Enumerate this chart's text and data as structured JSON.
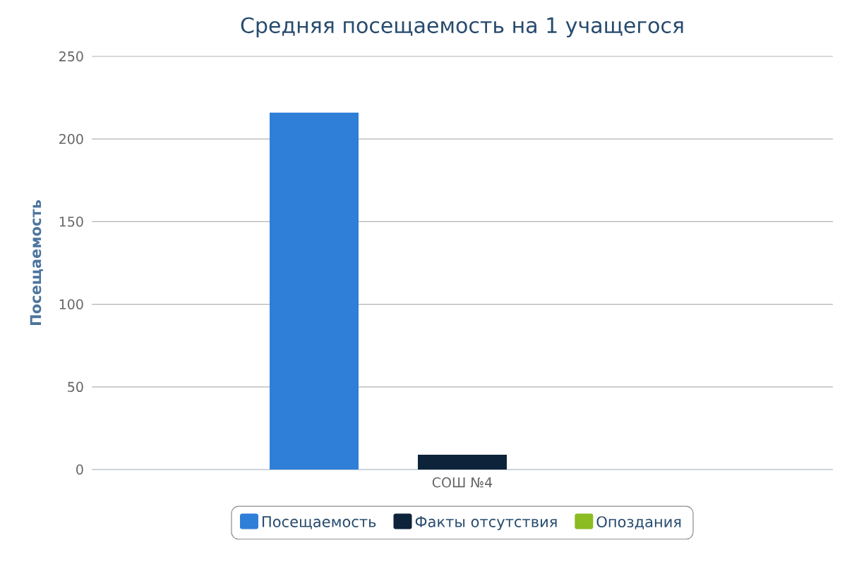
{
  "chart_data": {
    "type": "bar",
    "title": "Средняя посещаемость на 1 учащегося",
    "ylabel": "Посещаемость",
    "categories": [
      "СОШ №4"
    ],
    "series": [
      {
        "name": "Посещаемость",
        "color": "#2f7ed8",
        "values": [
          216
        ]
      },
      {
        "name": "Факты отсутствия",
        "color": "#0d233a",
        "values": [
          9
        ]
      },
      {
        "name": "Опоздания",
        "color": "#8bbc21",
        "values": [
          0
        ]
      }
    ],
    "ylim": [
      0,
      250
    ],
    "yticks": [
      0,
      50,
      100,
      150,
      200,
      250
    ],
    "grid": "y",
    "legend": "bottom"
  }
}
